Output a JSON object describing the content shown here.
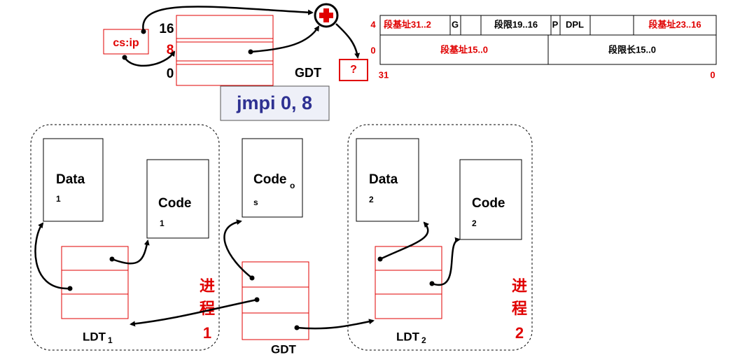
{
  "top": {
    "selector_labels": [
      16,
      8,
      0
    ],
    "register": "cs:ip",
    "table_label": "GDT",
    "adder_result": "?",
    "instruction": "jmpi 0, 8"
  },
  "descriptor": {
    "row_offsets": [
      4,
      0
    ],
    "row_high": [
      "段基址31..2",
      "G",
      "段限19..16",
      "P",
      "DPL",
      "段基址23..16"
    ],
    "row_low": [
      "段基址15..0",
      "段限长15..0"
    ],
    "bit_labels": [
      31,
      0
    ]
  },
  "process1": {
    "data": {
      "label": "Data",
      "sub": 1
    },
    "code": {
      "label": "Code",
      "sub": 1
    },
    "ldt": {
      "label": "LDT",
      "sub": 1
    },
    "caption": [
      "进",
      "程"
    ],
    "number": 1
  },
  "os": {
    "code": {
      "label": "Code",
      "sub": "o",
      "sub_wrap": "s"
    },
    "gdt": "GDT"
  },
  "process2": {
    "data": {
      "label": "Data",
      "sub": 2
    },
    "code": {
      "label": "Code",
      "sub": 2
    },
    "ldt": {
      "label": "LDT",
      "sub": 2
    },
    "caption": [
      "进",
      "程"
    ],
    "number": 2
  }
}
